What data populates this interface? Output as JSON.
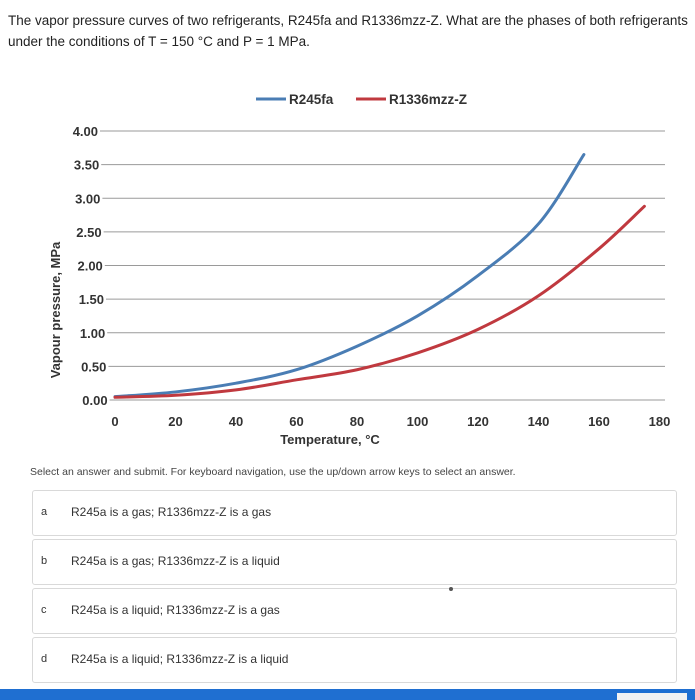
{
  "question": "The vapor pressure curves of two refrigerants, R245fa and R1336mzz-Z. What are the phases of both refrigerants under the conditions of T = 150 °C and P = 1 MPa.",
  "chart_data": {
    "type": "line",
    "title": "",
    "xlabel": "Temperature, °C",
    "ylabel": "Vapour pressure, MPa",
    "xlim": [
      0,
      180
    ],
    "ylim": [
      0,
      4
    ],
    "grid": "horizontal",
    "legend_position": "top",
    "x_ticks": [
      "0",
      "20",
      "40",
      "60",
      "80",
      "100",
      "120",
      "140",
      "160",
      "180"
    ],
    "y_ticks": [
      "0.00",
      "0.50",
      "1.00",
      "1.50",
      "2.00",
      "2.50",
      "3.00",
      "3.50",
      "4.00"
    ],
    "series": [
      {
        "name": "R245fa",
        "color": "#4a7db4",
        "x": [
          0,
          20,
          40,
          60,
          80,
          100,
          120,
          140,
          155
        ],
        "y": [
          0.05,
          0.12,
          0.25,
          0.45,
          0.8,
          1.25,
          1.85,
          2.62,
          3.65
        ]
      },
      {
        "name": "R1336mzz-Z",
        "color": "#c0393f",
        "x": [
          0,
          20,
          40,
          60,
          80,
          100,
          120,
          140,
          160,
          175
        ],
        "y": [
          0.04,
          0.07,
          0.15,
          0.3,
          0.45,
          0.7,
          1.05,
          1.55,
          2.25,
          2.88
        ]
      }
    ]
  },
  "instructions": "Select an answer and submit. For keyboard navigation, use the up/down arrow keys to select an answer.",
  "options": [
    {
      "letter": "a",
      "text": "R245a is a gas; R1336mzz-Z is a gas"
    },
    {
      "letter": "b",
      "text": "R245a is a gas; R1336mzz-Z is a liquid"
    },
    {
      "letter": "c",
      "text": "R245a is a liquid; R1336mzz-Z is a gas"
    },
    {
      "letter": "d",
      "text": "R245a is a liquid; R1336mzz-Z is a liquid"
    }
  ]
}
